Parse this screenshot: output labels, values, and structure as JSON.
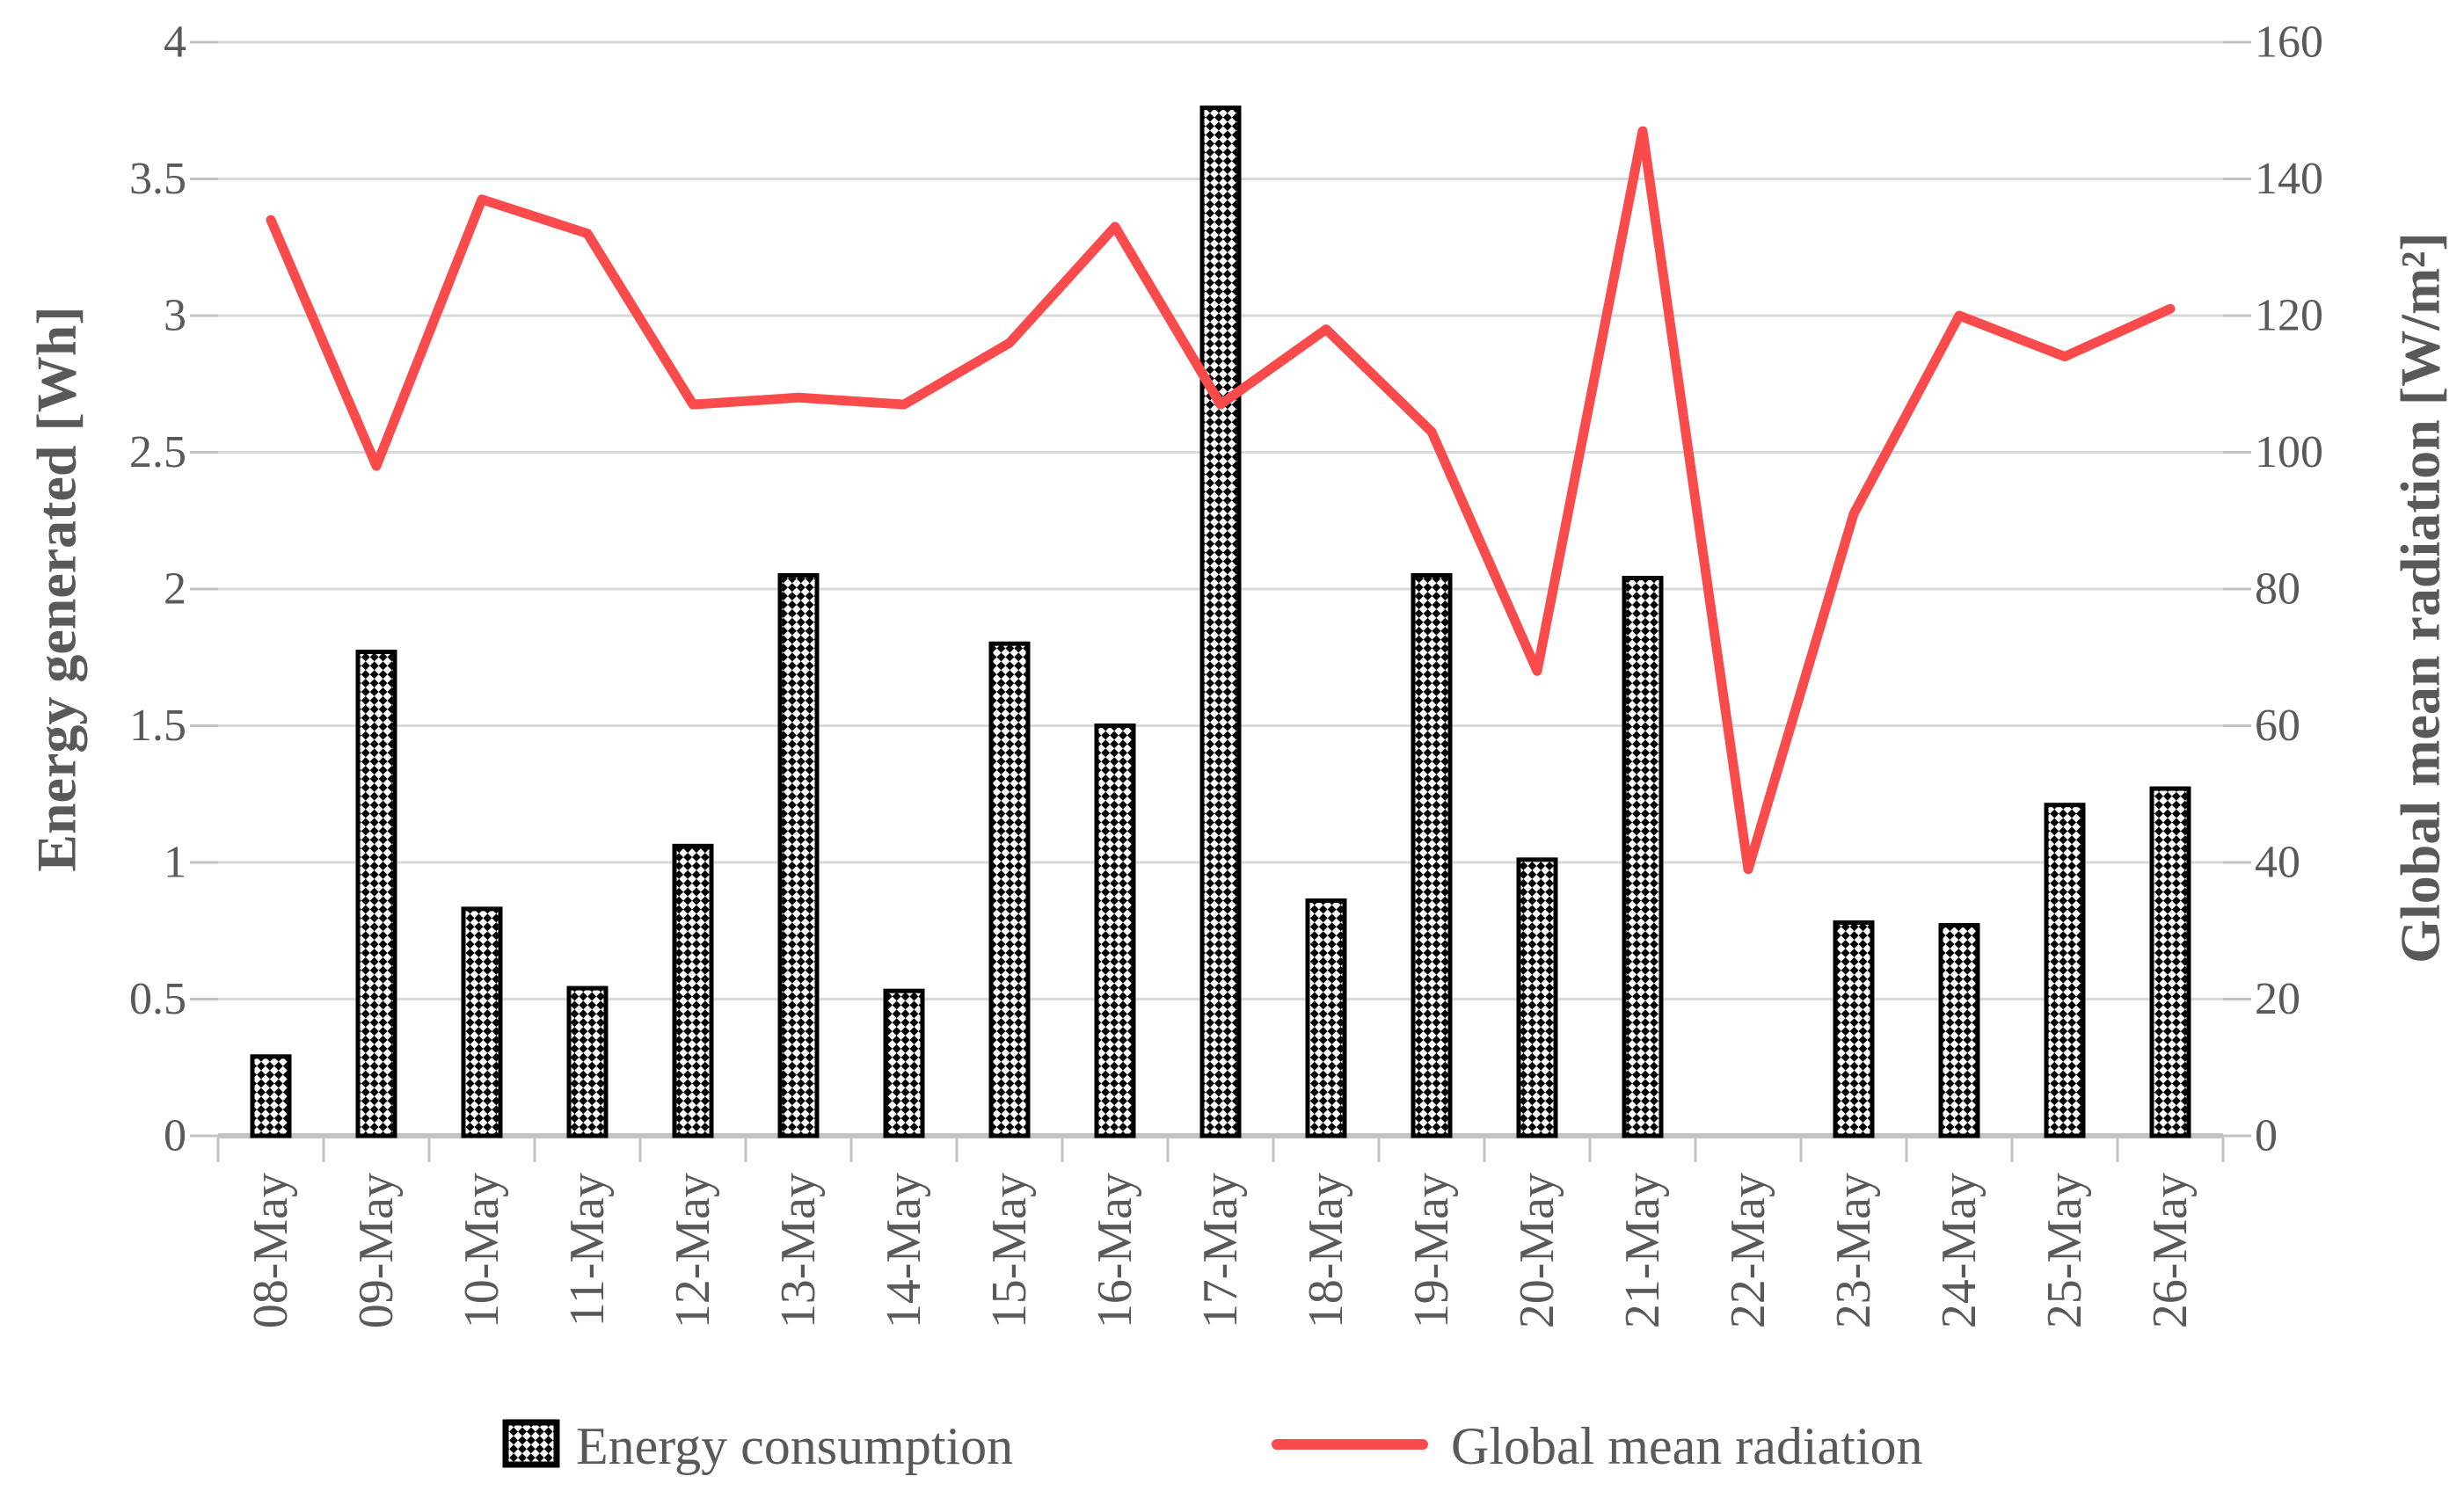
{
  "chart_data": {
    "type": "combo",
    "title": "",
    "categories": [
      "08-May",
      "09-May",
      "10-May",
      "11-May",
      "12-May",
      "13-May",
      "14-May",
      "15-May",
      "16-May",
      "17-May",
      "18-May",
      "19-May",
      "20-May",
      "21-May",
      "22-May",
      "23-May",
      "24-May",
      "25-May",
      "26-May"
    ],
    "series": [
      {
        "name": "Energy consumption",
        "type": "bar",
        "axis": "left",
        "values": [
          0.29,
          1.77,
          0.83,
          0.54,
          1.06,
          2.05,
          0.53,
          1.8,
          1.5,
          3.76,
          0.86,
          2.05,
          1.01,
          2.04,
          0,
          0.78,
          0.77,
          1.21,
          1.27
        ]
      },
      {
        "name": "Global mean radiation",
        "type": "line",
        "axis": "right",
        "values": [
          134,
          98,
          137,
          132,
          107,
          108,
          107,
          116,
          133,
          107,
          118,
          103,
          68,
          147,
          39,
          91,
          120,
          114,
          121
        ]
      }
    ],
    "left_axis": {
      "label": "Energy generated [Wh]",
      "min": 0,
      "max": 4,
      "step": 0.5,
      "tick_labels": [
        "0",
        "0.5",
        "1",
        "1.5",
        "2",
        "2.5",
        "3",
        "3.5",
        "4"
      ]
    },
    "right_axis": {
      "label": "Global mean radiation [W/m²]",
      "min": 0,
      "max": 160,
      "step": 20,
      "tick_labels": [
        "0",
        "20",
        "40",
        "60",
        "80",
        "100",
        "120",
        "140",
        "160"
      ]
    },
    "legend": {
      "position": "bottom"
    },
    "grid": true,
    "colors": {
      "line": "#F94B4B",
      "bar_border": "#000000",
      "bar_pattern": "black-white-checker",
      "text": "#595959",
      "gridline": "#D9D9D9",
      "axis": "#C3C3C3"
    }
  }
}
